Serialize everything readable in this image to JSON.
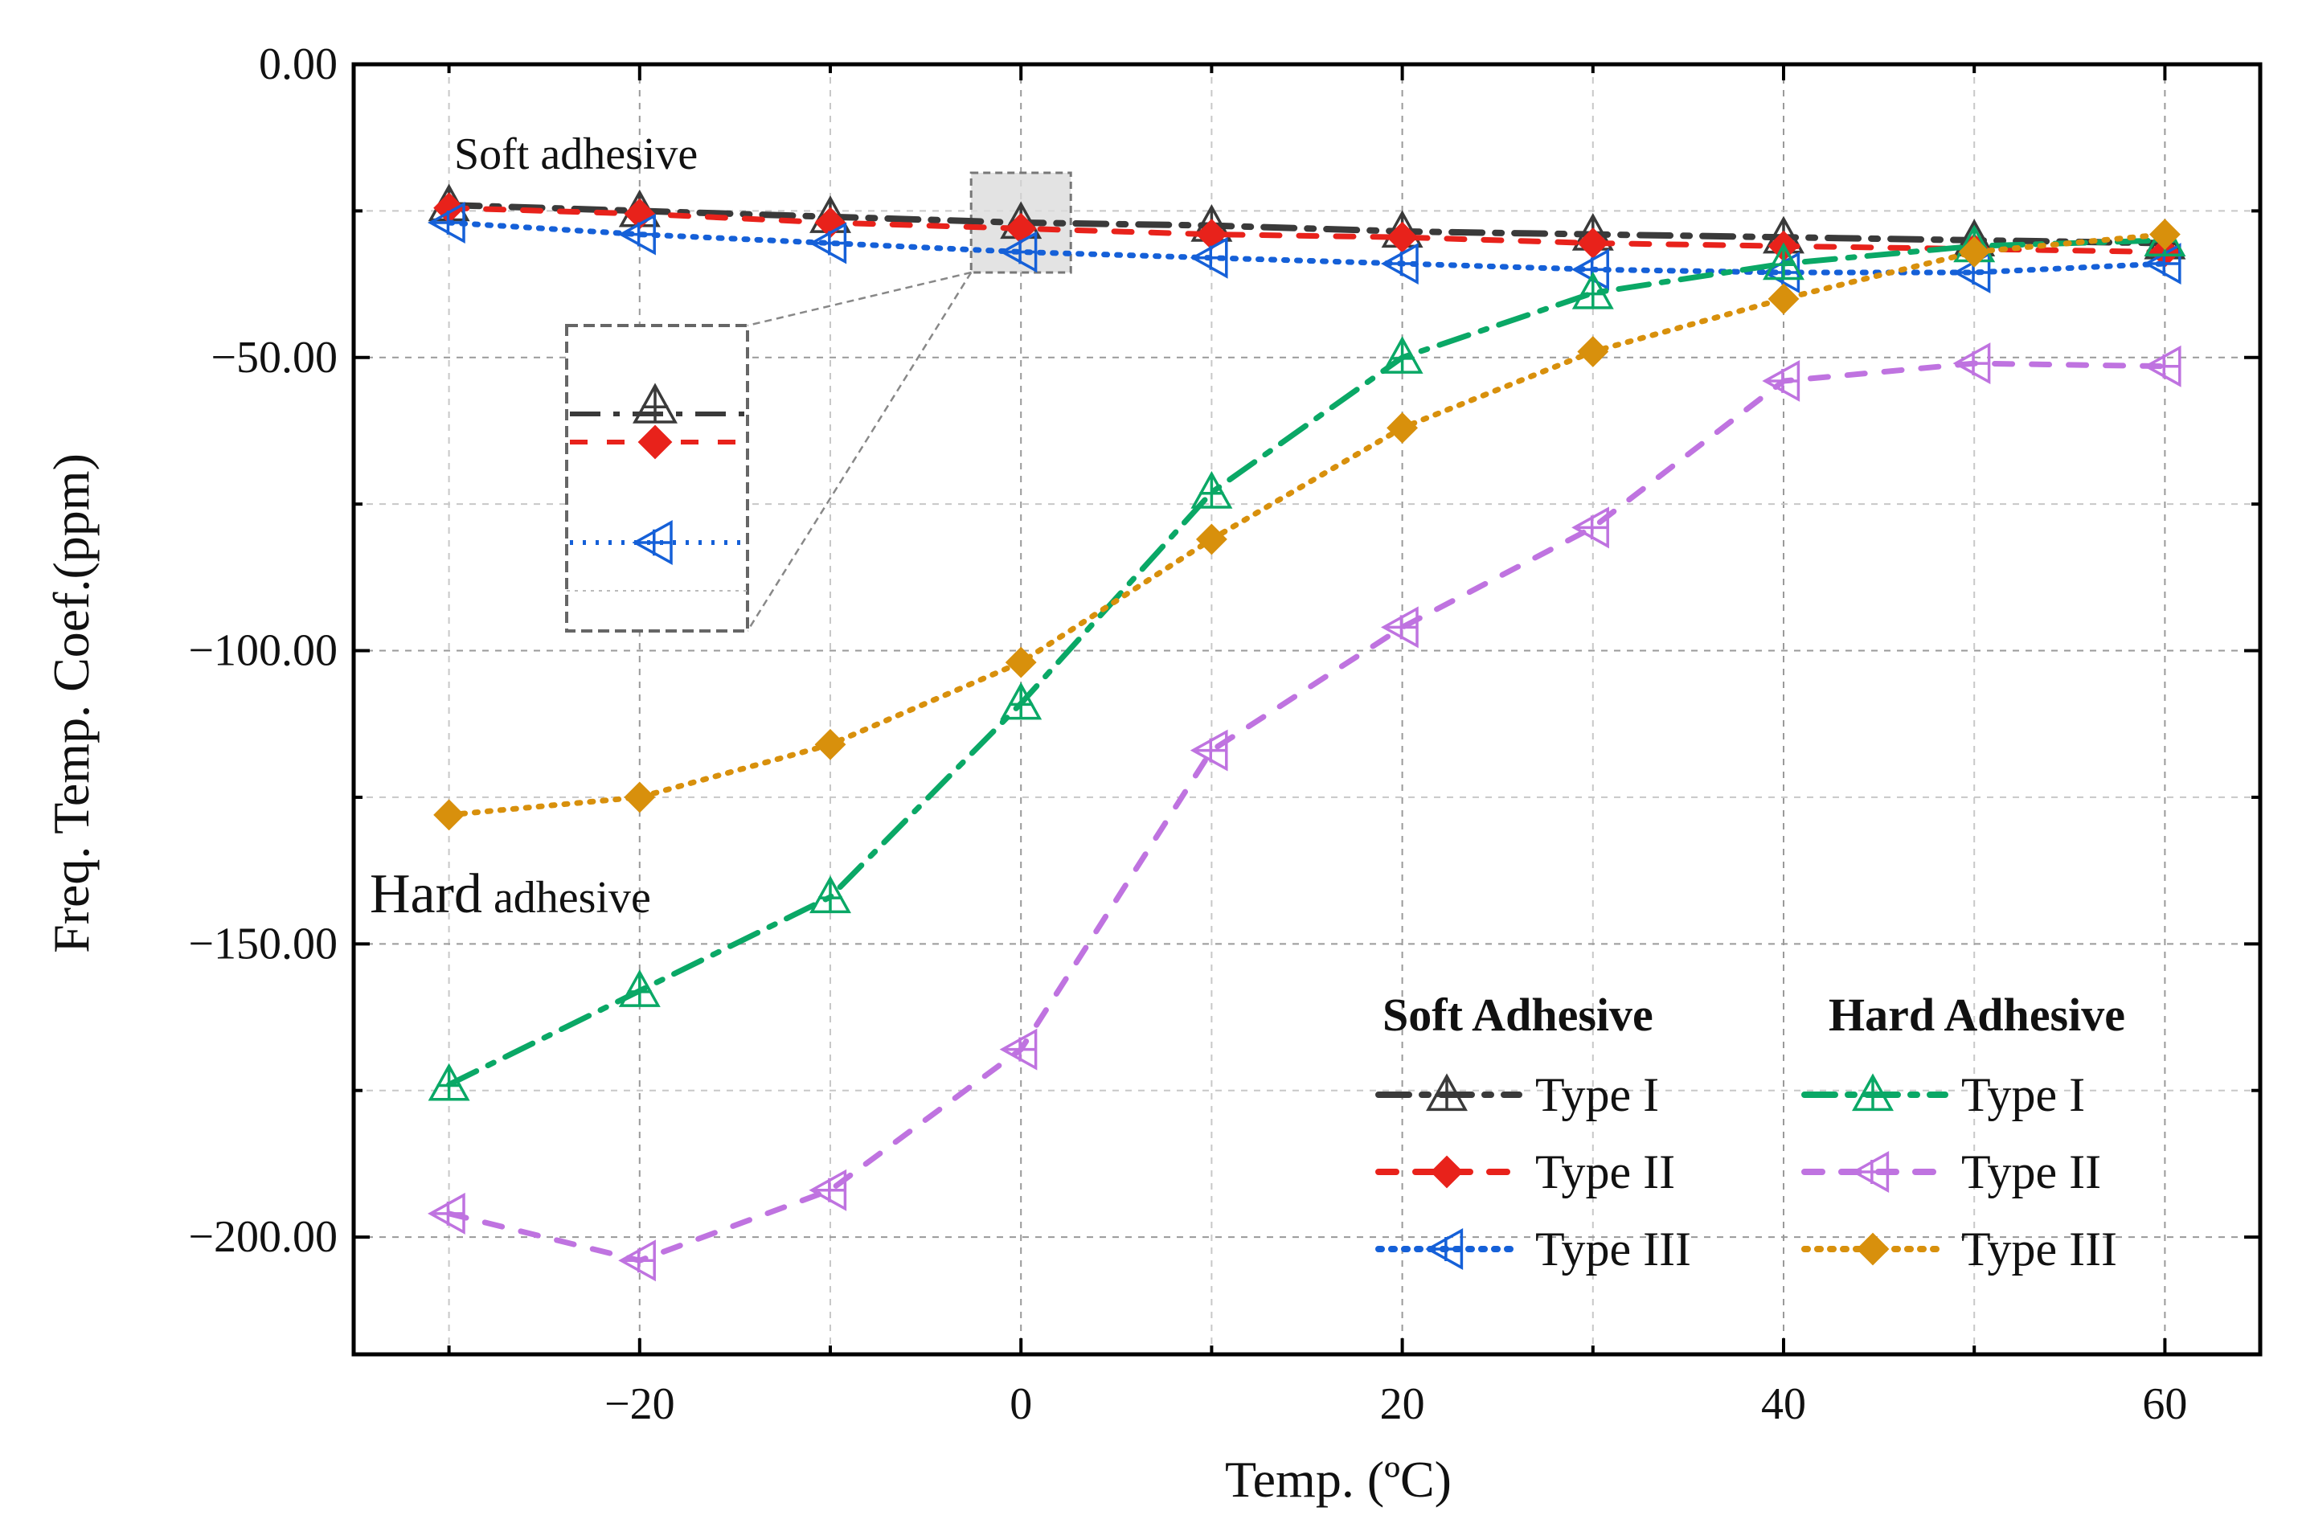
{
  "chart_data": {
    "type": "line",
    "xlabel": "Temp. (ºC)",
    "ylabel": "Freq. Temp. Coef.(ppm)",
    "xlim": [
      -35,
      65
    ],
    "ylim": [
      -220,
      0
    ],
    "grid": true,
    "x_ticks": [
      -20,
      0,
      20,
      40,
      60
    ],
    "x_tick_labels": [
      "−20",
      "0",
      "20",
      "40",
      "60"
    ],
    "y_ticks": [
      0,
      -50,
      -100,
      -150,
      -200
    ],
    "y_tick_labels": [
      "0.00",
      "−50.00",
      "−100.00",
      "−150.00",
      "−200.00"
    ],
    "x": [
      -30,
      -20,
      -10,
      0,
      10,
      20,
      30,
      40,
      50,
      60
    ],
    "series": [
      {
        "id": "soft-type-i",
        "group": "Soft Adhesive",
        "name": "Type I",
        "color": "#3a3a3a",
        "marker": "triangle-up",
        "dash": "dashdot",
        "values": [
          -24,
          -25,
          -26,
          -27,
          -27.5,
          -28.5,
          -29,
          -29.5,
          -30,
          -30.5
        ]
      },
      {
        "id": "soft-type-ii",
        "group": "Soft Adhesive",
        "name": "Type II",
        "color": "#e8221b",
        "marker": "diamond",
        "dash": "dash",
        "values": [
          -24.5,
          -25.5,
          -27,
          -28,
          -29,
          -29.5,
          -30.5,
          -31,
          -31.5,
          -32
        ]
      },
      {
        "id": "soft-type-iii",
        "group": "Soft Adhesive",
        "name": "Type III",
        "color": "#1560d8",
        "marker": "triangle-left",
        "dash": "dot",
        "values": [
          -27,
          -29,
          -30.5,
          -32,
          -33,
          -34,
          -35,
          -35.5,
          -35.5,
          -34
        ]
      },
      {
        "id": "hard-type-i",
        "group": "Hard Adhesive",
        "name": "Type I",
        "color": "#0aa866",
        "marker": "triangle-up",
        "dash": "dashdot",
        "values": [
          -174,
          -158,
          -142,
          -109,
          -73,
          -50,
          -39,
          -34,
          -31,
          -30
        ]
      },
      {
        "id": "hard-type-ii",
        "group": "Hard Adhesive",
        "name": "Type II",
        "color": "#bf73e0",
        "marker": "triangle-left",
        "dash": "dash",
        "values": [
          -196,
          -204,
          -192,
          -168,
          -117,
          -96,
          -79,
          -54,
          -51,
          -51.5
        ]
      },
      {
        "id": "hard-type-iii",
        "group": "Hard Adhesive",
        "name": "Type III",
        "color": "#d8900c",
        "marker": "diamond",
        "dash": "dot",
        "values": [
          -128,
          -125,
          -116,
          -102,
          -81,
          -62,
          -49,
          -40,
          -32,
          -29
        ]
      }
    ],
    "annotations": {
      "soft": "Soft adhesive",
      "hard_word": "Hard",
      "hard_rest": " adhesive"
    },
    "legend": {
      "soft_title": "Soft Adhesive",
      "hard_title": "Hard Adhesive",
      "position": "bottom-right"
    },
    "zoom_inset": {
      "center_x": 0,
      "center_y": -27
    }
  }
}
